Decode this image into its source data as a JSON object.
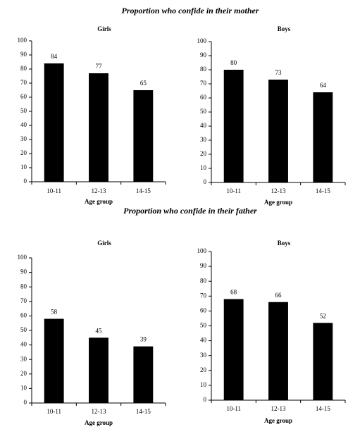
{
  "headings": [
    "Proportion who confide in their mother",
    "Proportion who confide in their father"
  ],
  "chart_data": [
    {
      "type": "bar",
      "title": "Girls",
      "xlabel": "Age group",
      "categories": [
        "10-11",
        "12-13",
        "14-15"
      ],
      "values": [
        84,
        77,
        65
      ],
      "color": "#000000",
      "ylim": [
        0,
        100
      ],
      "yticks": [
        0,
        10,
        20,
        30,
        40,
        50,
        60,
        70,
        80,
        90,
        100
      ],
      "grid": false
    },
    {
      "type": "bar",
      "title": "Boys",
      "xlabel": "Age group",
      "categories": [
        "10-11",
        "12-13",
        "14-15"
      ],
      "values": [
        80,
        73,
        64
      ],
      "color": "#000000",
      "ylim": [
        0,
        100
      ],
      "yticks": [
        0,
        10,
        20,
        30,
        40,
        50,
        60,
        70,
        80,
        90,
        100
      ],
      "grid": false
    },
    {
      "type": "bar",
      "title": "Girls",
      "xlabel": "Age group",
      "categories": [
        "10-11",
        "12-13",
        "14-15"
      ],
      "values": [
        58,
        45,
        39
      ],
      "color": "#000000",
      "ylim": [
        0,
        100
      ],
      "yticks": [
        0,
        10,
        20,
        30,
        40,
        50,
        60,
        70,
        80,
        90,
        100
      ],
      "grid": false
    },
    {
      "type": "bar",
      "title": "Boys",
      "xlabel": "Age group",
      "categories": [
        "10-11",
        "12-13",
        "14-15"
      ],
      "values": [
        68,
        66,
        52
      ],
      "color": "#000000",
      "ylim": [
        0,
        100
      ],
      "yticks": [
        0,
        10,
        20,
        30,
        40,
        50,
        60,
        70,
        80,
        90,
        100
      ],
      "grid": false
    }
  ]
}
